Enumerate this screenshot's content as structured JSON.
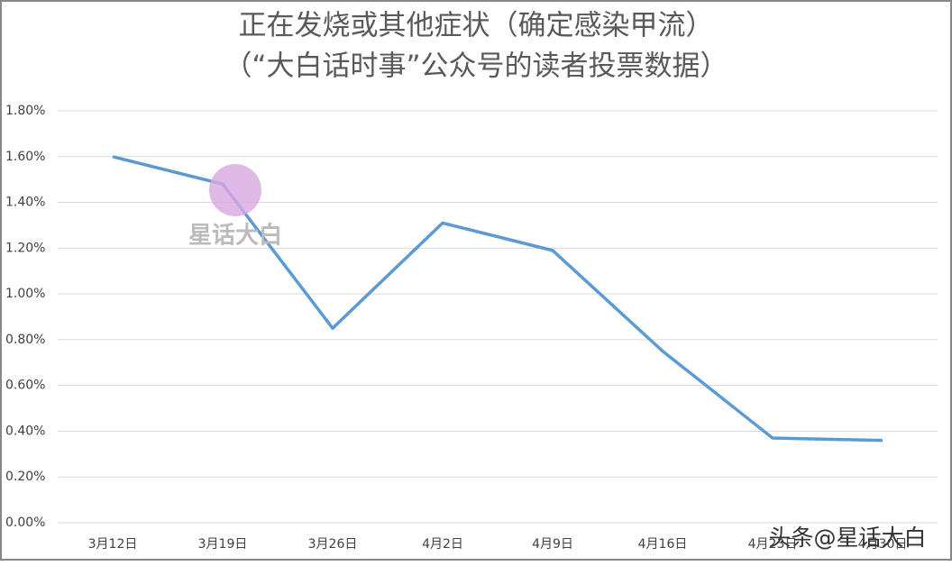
{
  "chart_data": {
    "type": "line",
    "title": "正在发烧或其他症状（确定感染甲流）",
    "subtitle": "（“大白话时事”公众号的读者投票数据）",
    "categories": [
      "3月12日",
      "3月19日",
      "3月26日",
      "4月2日",
      "4月9日",
      "4月16日",
      "4月23日",
      "4月30日"
    ],
    "series": [
      {
        "color": "#5b9bd5",
        "values": [
          1.6,
          1.48,
          0.85,
          1.31,
          1.19,
          0.75,
          0.37,
          0.36
        ]
      }
    ],
    "ylim": [
      0,
      1.8
    ],
    "yticks": [
      {
        "value": 0,
        "label": "0.00%"
      },
      {
        "value": 0.2,
        "label": "0.20%"
      },
      {
        "value": 0.4,
        "label": "0.40%"
      },
      {
        "value": 0.6,
        "label": "0.60%"
      },
      {
        "value": 0.8,
        "label": "0.80%"
      },
      {
        "value": 1.0,
        "label": "1.00%"
      },
      {
        "value": 1.2,
        "label": "1.20%"
      },
      {
        "value": 1.4,
        "label": "1.40%"
      },
      {
        "value": 1.6,
        "label": "1.60%"
      },
      {
        "value": 1.8,
        "label": "1.80%"
      }
    ],
    "grid": true,
    "watermark": "星话大白",
    "source_watermark": "头条@星话大白"
  }
}
